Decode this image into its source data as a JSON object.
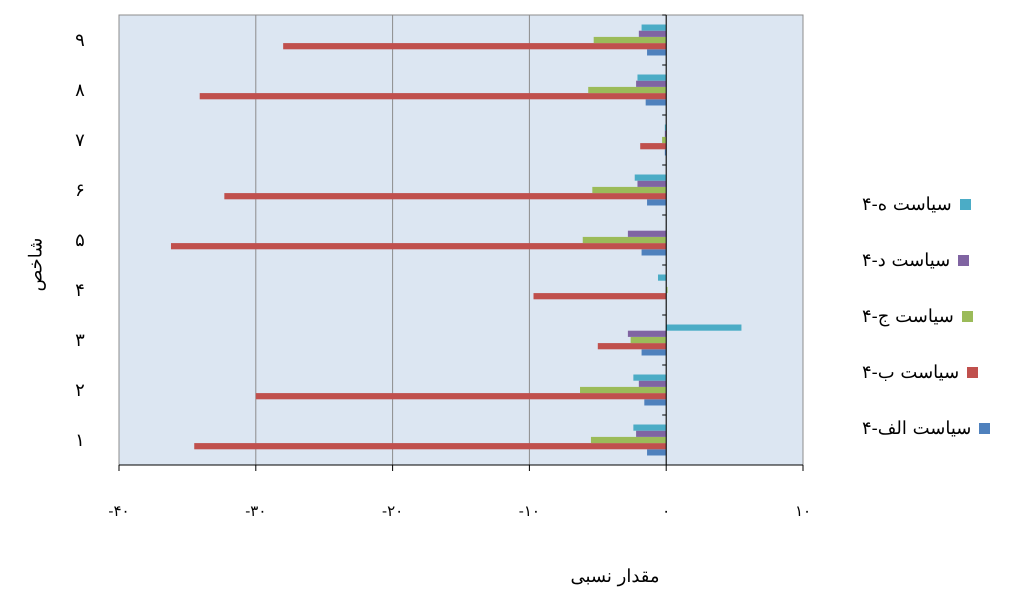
{
  "chart_data": {
    "type": "bar",
    "orientation": "horizontal",
    "title": "",
    "xlabel": "مقدار نسبی",
    "ylabel": "شاخص",
    "xlim": [
      -40,
      10
    ],
    "x_ticks": [
      -40,
      -30,
      -20,
      -10,
      0,
      10
    ],
    "x_tick_labels": [
      "-۴۰",
      "-۳۰",
      "-۲۰",
      "-۱۰",
      "۰",
      "۱۰"
    ],
    "categories": [
      "۱",
      "۲",
      "۳",
      "۴",
      "۵",
      "۶",
      "۷",
      "۸",
      "۹"
    ],
    "grid": "vertical",
    "legend_position": "right",
    "series": [
      {
        "name": "سیاست الف-۴",
        "color": "#4F81BD",
        "values": [
          -1.4,
          -1.6,
          -1.8,
          0,
          -1.8,
          -1.4,
          -0.1,
          -1.5,
          -1.4
        ]
      },
      {
        "name": "سیاست ب-۴",
        "color": "#C0504D",
        "values": [
          -34.5,
          -30.0,
          -5.0,
          -9.7,
          -36.2,
          -32.3,
          -1.9,
          -34.1,
          -28.0
        ]
      },
      {
        "name": "سیاست ج-۴",
        "color": "#9BBB59",
        "values": [
          -5.5,
          -6.3,
          -2.6,
          0.1,
          -6.1,
          -5.4,
          -0.3,
          -5.7,
          -5.3
        ]
      },
      {
        "name": "سیاست د-۴",
        "color": "#8064A2",
        "values": [
          -2.2,
          -2.0,
          -2.8,
          0,
          -2.8,
          -2.1,
          -0.1,
          -2.2,
          -2.0
        ]
      },
      {
        "name": "سیاست ه-۴",
        "color": "#4BACC6",
        "values": [
          -2.4,
          -2.4,
          5.5,
          -0.6,
          0,
          -2.3,
          -0.1,
          -2.1,
          -1.8
        ]
      }
    ]
  }
}
